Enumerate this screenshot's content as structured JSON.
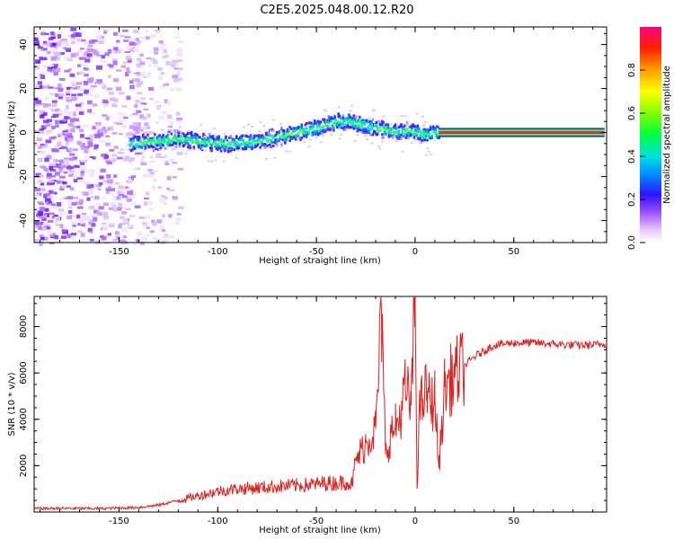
{
  "title": "C2E5.2025.048.00.12.R20",
  "chart_data": [
    {
      "type": "heatmap",
      "xlabel": "Height of straight line (km)",
      "ylabel": "Frequency (Hz)",
      "xlim": [
        -193,
        97
      ],
      "ylim": [
        -50,
        48
      ],
      "xticks": [
        -150,
        -100,
        -50,
        0,
        50
      ],
      "yticks": [
        -40,
        -20,
        0,
        20,
        40
      ],
      "colorbar": {
        "label": "Normalized spectral amplitude",
        "ticks": [
          0.0,
          0.2,
          0.4,
          0.6,
          0.8
        ],
        "range": [
          0,
          1
        ]
      },
      "ridge": {
        "x": [
          -145,
          -130,
          -120,
          -110,
          -100,
          -90,
          -80,
          -70,
          -60,
          -50,
          -40,
          -35,
          -30,
          -25,
          -20,
          -15,
          -10,
          -5,
          0,
          5,
          10,
          20,
          40,
          60,
          80,
          96
        ],
        "y": [
          -5,
          -4,
          -3,
          -4,
          -5,
          -5,
          -4,
          -2,
          0,
          2,
          5,
          5,
          4,
          3,
          2,
          1,
          0,
          1,
          0,
          -1,
          0,
          0,
          0,
          0,
          0,
          0
        ]
      },
      "noise_region_x": [
        -193,
        -120
      ]
    },
    {
      "type": "line",
      "xlabel": "Height of straight line (km)",
      "ylabel": "SNR (10 * v/v)",
      "xlim": [
        -193,
        97
      ],
      "ylim": [
        0,
        9300
      ],
      "xticks": [
        -150,
        -100,
        -50,
        0,
        50
      ],
      "yticks": [
        2000,
        4000,
        6000,
        8000
      ],
      "series": [
        {
          "color": "#e02020",
          "x": [
            -193,
            -180,
            -160,
            -140,
            -130,
            -120,
            -110,
            -100,
            -90,
            -80,
            -70,
            -60,
            -50,
            -45,
            -40,
            -35,
            -32,
            -30,
            -25,
            -20,
            -17,
            -15,
            -12,
            -10,
            -8,
            -5,
            -2,
            0,
            1,
            2,
            4,
            6,
            8,
            10,
            12,
            15,
            20,
            25,
            30,
            40,
            50,
            60,
            70,
            80,
            90,
            96
          ],
          "y": [
            150,
            160,
            150,
            200,
            300,
            500,
            700,
            900,
            1000,
            1050,
            1100,
            1150,
            1200,
            1250,
            1250,
            1300,
            1200,
            2200,
            3000,
            3600,
            8500,
            2500,
            3400,
            3700,
            4000,
            5300,
            4600,
            9300,
            1000,
            4200,
            4900,
            5200,
            4600,
            5000,
            1900,
            5400,
            5900,
            6300,
            6700,
            7200,
            7300,
            7300,
            7250,
            7200,
            7200,
            7250
          ]
        }
      ]
    }
  ]
}
